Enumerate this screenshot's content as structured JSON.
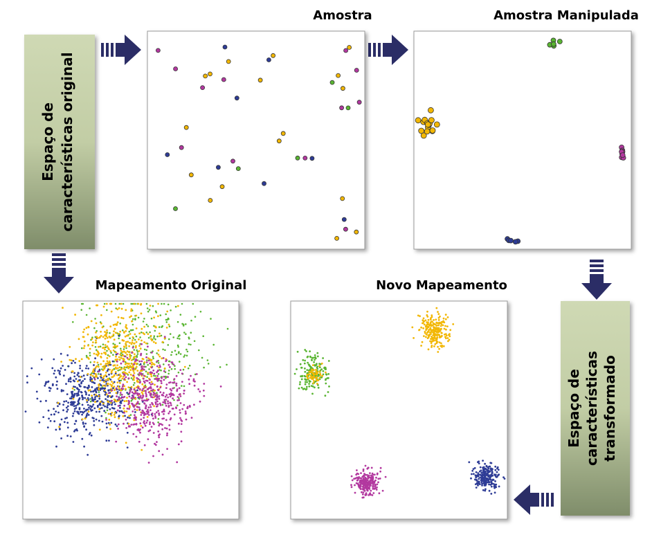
{
  "source_box": {
    "lines": [
      "Espaço de",
      "características original"
    ]
  },
  "sample": {
    "title": "Amostra"
  },
  "manipulated_sample": {
    "title": "Amostra Manipulada"
  },
  "original_mapping": {
    "title": "Mapeamento Original"
  },
  "new_mapping": {
    "title": "Novo Mapeamento"
  },
  "target_box": {
    "lines": [
      "Espaço de",
      "características",
      "transformado"
    ]
  }
}
